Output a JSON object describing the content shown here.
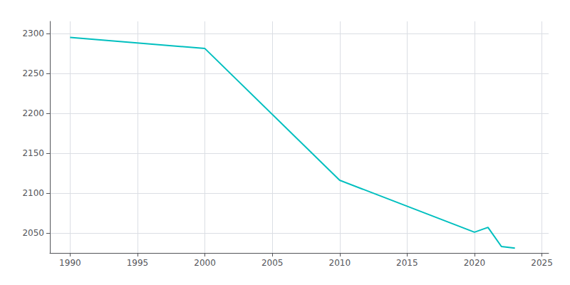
{
  "chart_data": {
    "type": "line",
    "x": [
      1990,
      2000,
      2010,
      2020,
      2021,
      2022,
      2023
    ],
    "values": [
      2295,
      2281,
      2116,
      2051,
      2057,
      2033,
      2031
    ],
    "color": "#00BFBF",
    "xlim": [
      1988.5,
      2025.5
    ],
    "xticks": [
      1990,
      1995,
      2000,
      2005,
      2010,
      2015,
      2020,
      2025
    ],
    "ylim": [
      2025,
      2315
    ],
    "yticks": [
      2050,
      2100,
      2150,
      2200,
      2250,
      2300
    ],
    "grid": true
  }
}
